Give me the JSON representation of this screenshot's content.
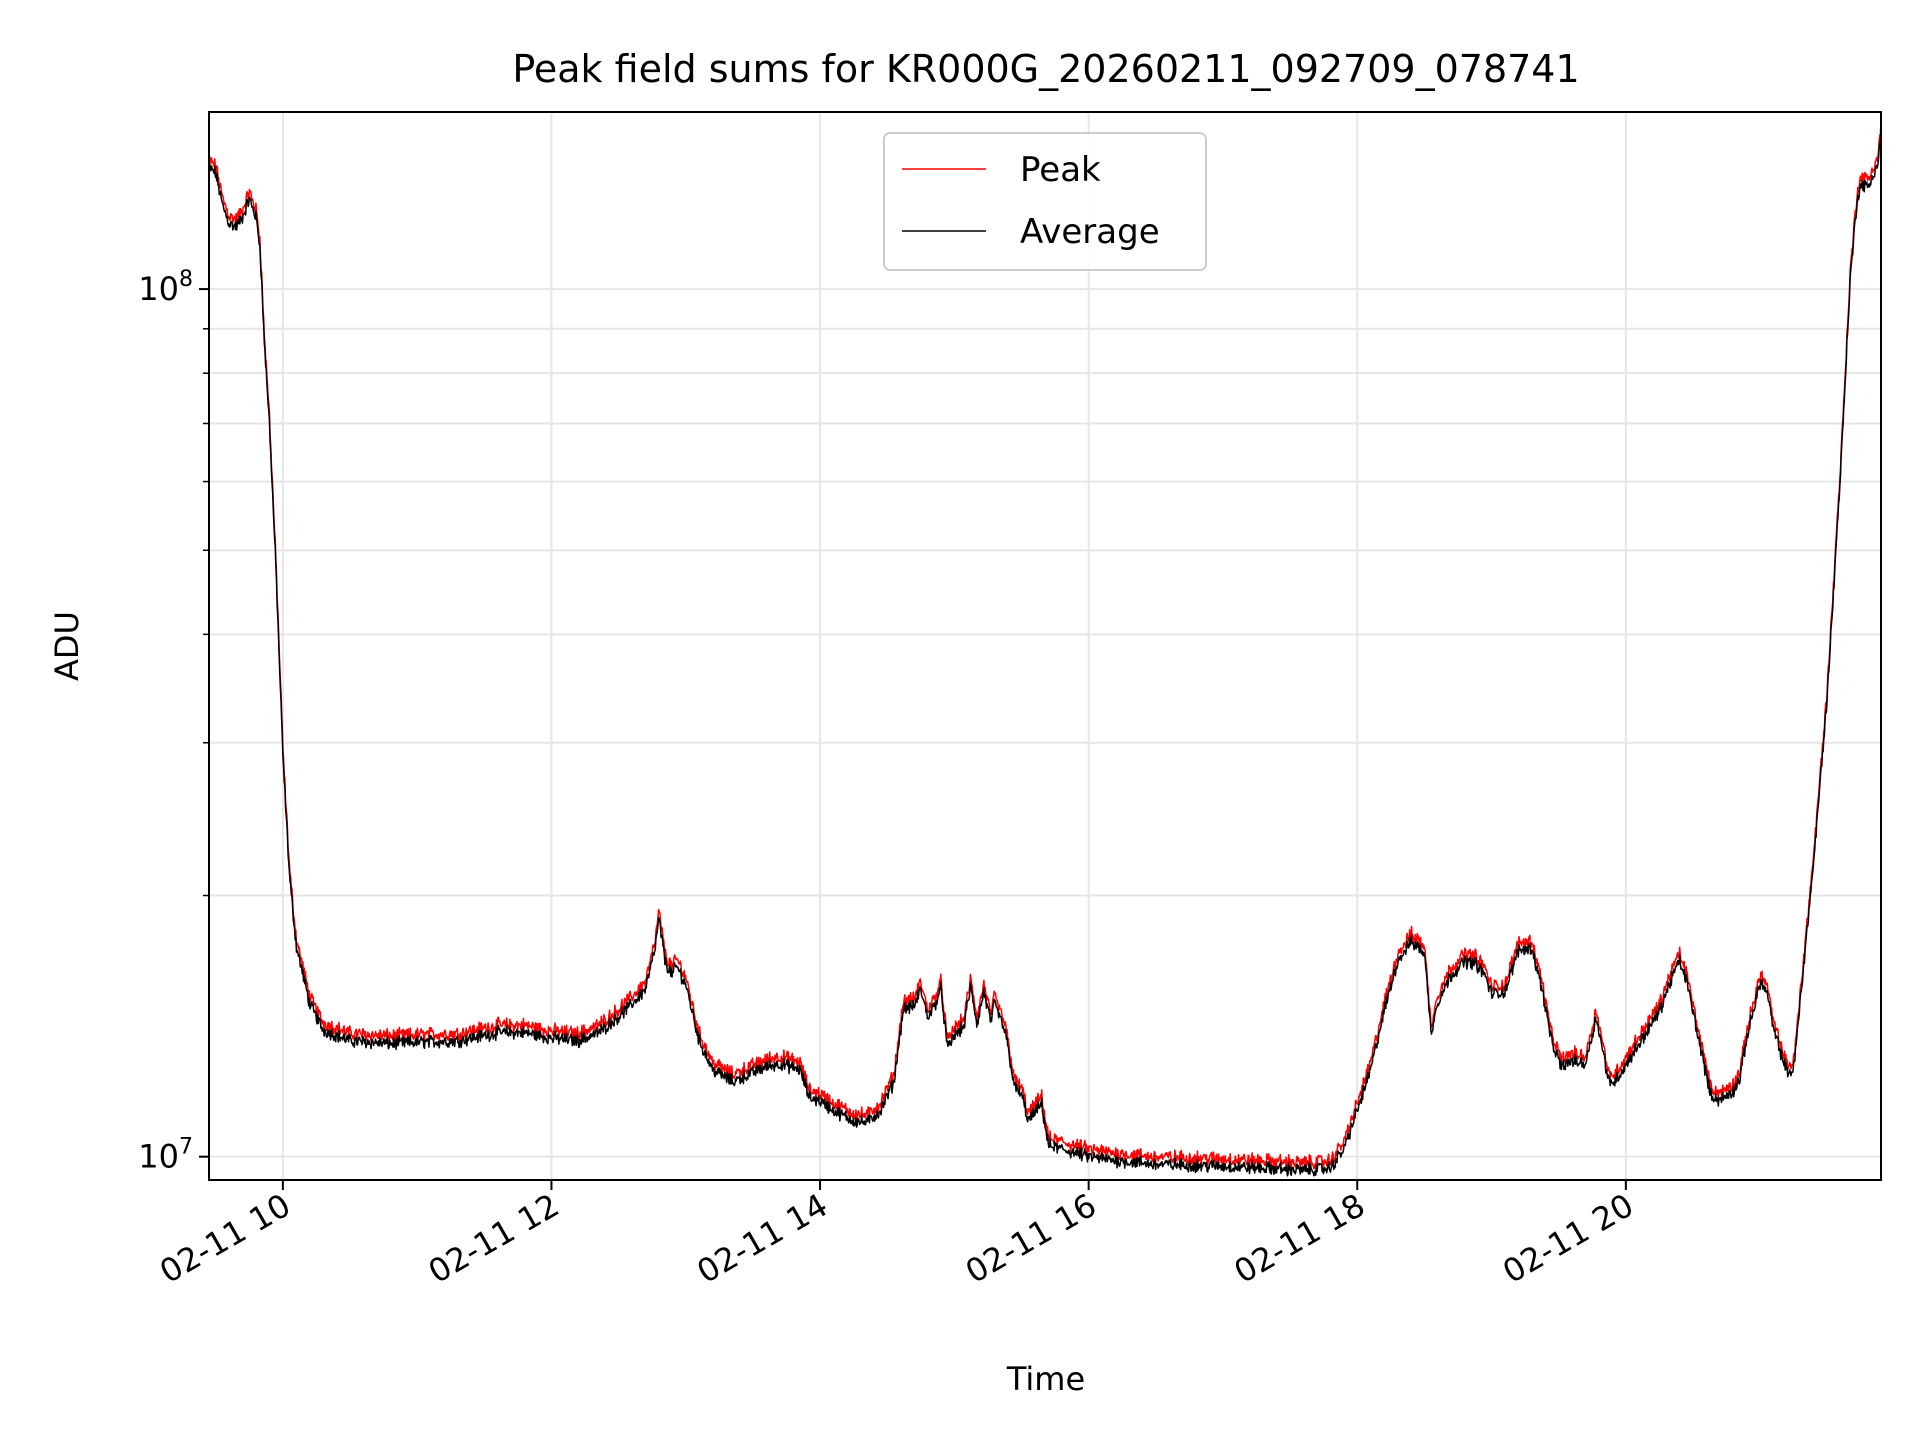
{
  "chart_data": {
    "type": "line",
    "title": "Peak field sums for KR000G_20260211_092709_078741",
    "xlabel": "Time",
    "ylabel": "ADU",
    "x_unit": "hour of 2026-02-11",
    "x_range": [
      9.45,
      21.9
    ],
    "yscale": "log",
    "y_range": [
      9400000,
      160000000
    ],
    "grid": true,
    "grid_minor_y": true,
    "legend_position": "upper center",
    "x_ticks": [
      {
        "value": 10,
        "label": "02-11 10"
      },
      {
        "value": 12,
        "label": "02-11 12"
      },
      {
        "value": 14,
        "label": "02-11 14"
      },
      {
        "value": 16,
        "label": "02-11 16"
      },
      {
        "value": 18,
        "label": "02-11 18"
      },
      {
        "value": 20,
        "label": "02-11 20"
      }
    ],
    "y_major_ticks": [
      {
        "value": 10000000,
        "base": "10",
        "exp": "7"
      },
      {
        "value": 100000000,
        "base": "10",
        "exp": "8"
      }
    ],
    "y_minor_ticks": [
      20000000,
      30000000,
      40000000,
      50000000,
      60000000,
      70000000,
      80000000,
      90000000
    ],
    "series": [
      {
        "name": "Peak",
        "color": "#ff0000",
        "offset_ratio": 1.02,
        "note": "nearly identical to Average, slightly higher"
      },
      {
        "name": "Average",
        "color": "#000000",
        "offset_ratio": 1.0
      }
    ],
    "base_curve": [
      [
        9.45,
        138000000
      ],
      [
        9.5,
        136000000
      ],
      [
        9.55,
        125000000
      ],
      [
        9.6,
        119000000
      ],
      [
        9.65,
        118000000
      ],
      [
        9.7,
        121000000
      ],
      [
        9.75,
        127000000
      ],
      [
        9.8,
        121000000
      ],
      [
        9.83,
        112000000
      ],
      [
        9.86,
        88000000
      ],
      [
        9.9,
        70000000
      ],
      [
        9.95,
        47000000
      ],
      [
        10.0,
        29000000
      ],
      [
        10.05,
        21000000
      ],
      [
        10.1,
        17500000
      ],
      [
        10.2,
        15000000
      ],
      [
        10.3,
        14000000
      ],
      [
        10.5,
        13600000
      ],
      [
        10.8,
        13500000
      ],
      [
        11.0,
        13550000
      ],
      [
        11.3,
        13600000
      ],
      [
        11.6,
        13900000
      ],
      [
        11.8,
        13900000
      ],
      [
        12.0,
        13700000
      ],
      [
        12.2,
        13600000
      ],
      [
        12.35,
        13900000
      ],
      [
        12.5,
        14500000
      ],
      [
        12.6,
        15000000
      ],
      [
        12.7,
        15600000
      ],
      [
        12.77,
        17300000
      ],
      [
        12.8,
        18800000
      ],
      [
        12.85,
        16700000
      ],
      [
        12.9,
        16200000
      ],
      [
        12.93,
        16600000
      ],
      [
        13.0,
        15800000
      ],
      [
        13.1,
        13600000
      ],
      [
        13.2,
        12600000
      ],
      [
        13.35,
        12200000
      ],
      [
        13.45,
        12400000
      ],
      [
        13.6,
        12700000
      ],
      [
        13.7,
        12800000
      ],
      [
        13.85,
        12600000
      ],
      [
        13.92,
        11700000
      ],
      [
        14.0,
        11600000
      ],
      [
        14.1,
        11300000
      ],
      [
        14.25,
        11000000
      ],
      [
        14.35,
        10950000
      ],
      [
        14.45,
        11300000
      ],
      [
        14.55,
        12200000
      ],
      [
        14.62,
        14800000
      ],
      [
        14.7,
        14900000
      ],
      [
        14.75,
        15600000
      ],
      [
        14.8,
        14500000
      ],
      [
        14.85,
        14900000
      ],
      [
        14.9,
        15600000
      ],
      [
        14.95,
        13300000
      ],
      [
        15.0,
        13800000
      ],
      [
        15.07,
        14100000
      ],
      [
        15.12,
        15700000
      ],
      [
        15.17,
        14200000
      ],
      [
        15.22,
        15500000
      ],
      [
        15.27,
        14300000
      ],
      [
        15.3,
        15000000
      ],
      [
        15.38,
        13900000
      ],
      [
        15.45,
        12000000
      ],
      [
        15.5,
        11800000
      ],
      [
        15.55,
        11000000
      ],
      [
        15.65,
        11500000
      ],
      [
        15.7,
        10300000
      ],
      [
        15.8,
        10200000
      ],
      [
        16.0,
        10000000
      ],
      [
        16.2,
        9900000
      ],
      [
        16.5,
        9800000
      ],
      [
        17.0,
        9750000
      ],
      [
        17.3,
        9700000
      ],
      [
        17.6,
        9650000
      ],
      [
        17.8,
        9700000
      ],
      [
        17.9,
        10200000
      ],
      [
        18.0,
        11300000
      ],
      [
        18.1,
        12600000
      ],
      [
        18.2,
        14700000
      ],
      [
        18.3,
        16800000
      ],
      [
        18.4,
        17700000
      ],
      [
        18.5,
        17200000
      ],
      [
        18.55,
        13900000
      ],
      [
        18.6,
        15100000
      ],
      [
        18.7,
        16200000
      ],
      [
        18.8,
        16800000
      ],
      [
        18.88,
        16700000
      ],
      [
        18.95,
        16200000
      ],
      [
        19.0,
        15400000
      ],
      [
        19.1,
        15500000
      ],
      [
        19.2,
        17300000
      ],
      [
        19.3,
        17400000
      ],
      [
        19.38,
        15500000
      ],
      [
        19.45,
        13500000
      ],
      [
        19.52,
        12700000
      ],
      [
        19.6,
        12900000
      ],
      [
        19.7,
        12800000
      ],
      [
        19.78,
        14500000
      ],
      [
        19.83,
        13200000
      ],
      [
        19.88,
        12100000
      ],
      [
        19.95,
        12400000
      ],
      [
        20.1,
        13500000
      ],
      [
        20.25,
        14700000
      ],
      [
        20.35,
        16200000
      ],
      [
        20.4,
        16800000
      ],
      [
        20.45,
        16000000
      ],
      [
        20.55,
        13500000
      ],
      [
        20.63,
        11800000
      ],
      [
        20.7,
        11600000
      ],
      [
        20.8,
        11900000
      ],
      [
        20.85,
        12300000
      ],
      [
        20.9,
        13700000
      ],
      [
        21.0,
        15900000
      ],
      [
        21.05,
        15500000
      ],
      [
        21.1,
        14000000
      ],
      [
        21.2,
        12500000
      ],
      [
        21.25,
        12600000
      ],
      [
        21.3,
        15200000
      ],
      [
        21.4,
        22000000
      ],
      [
        21.5,
        34000000
      ],
      [
        21.6,
        62000000
      ],
      [
        21.67,
        102000000
      ],
      [
        21.72,
        126000000
      ],
      [
        21.75,
        132000000
      ],
      [
        21.8,
        131000000
      ],
      [
        21.85,
        136000000
      ],
      [
        21.88,
        140000000
      ],
      [
        21.9,
        152000000
      ]
    ]
  }
}
